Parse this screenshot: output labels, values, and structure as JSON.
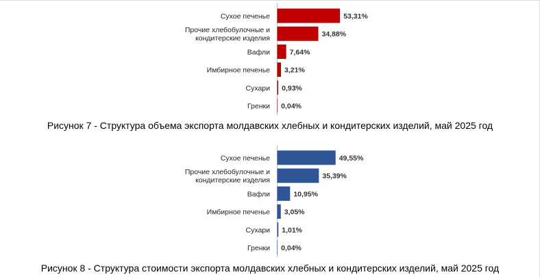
{
  "chart_data": [
    {
      "type": "bar",
      "orientation": "horizontal",
      "categories": [
        [
          "Сухое печенье"
        ],
        [
          "Прочие хлебобулочные  и",
          "кондитерские изделия"
        ],
        [
          "Вафли"
        ],
        [
          "Имбирное печенье"
        ],
        [
          "Сухари"
        ],
        [
          "Гренки"
        ]
      ],
      "values": [
        53.31,
        34.88,
        7.64,
        3.21,
        0.93,
        0.04
      ],
      "value_labels": [
        "53,31%",
        "34,88%",
        "7,64%",
        "3,21%",
        "0,93%",
        "0,04%"
      ],
      "color": "#C00000",
      "caption": "Рисунок 7 - Структура объема экспорта молдавских хлебных и кондитерских изделий, май 2025 год"
    },
    {
      "type": "bar",
      "orientation": "horizontal",
      "categories": [
        [
          "Сухое печенье"
        ],
        [
          "Прочие хлебобулочные  и",
          "кондитерские изделия"
        ],
        [
          "Вафли"
        ],
        [
          "Имбирное печенье"
        ],
        [
          "Сухари"
        ],
        [
          "Гренки"
        ]
      ],
      "values": [
        49.55,
        35.39,
        10.95,
        3.05,
        1.01,
        0.04
      ],
      "value_labels": [
        "49,55%",
        "35,39%",
        "10,95%",
        "3,05%",
        "1,01%",
        "0,04%"
      ],
      "color": "#2F5597",
      "caption": "Рисунок 8 - Структура стоимости экспорта молдавских хлебных и кондитерских изделий, май 2025 год"
    }
  ]
}
